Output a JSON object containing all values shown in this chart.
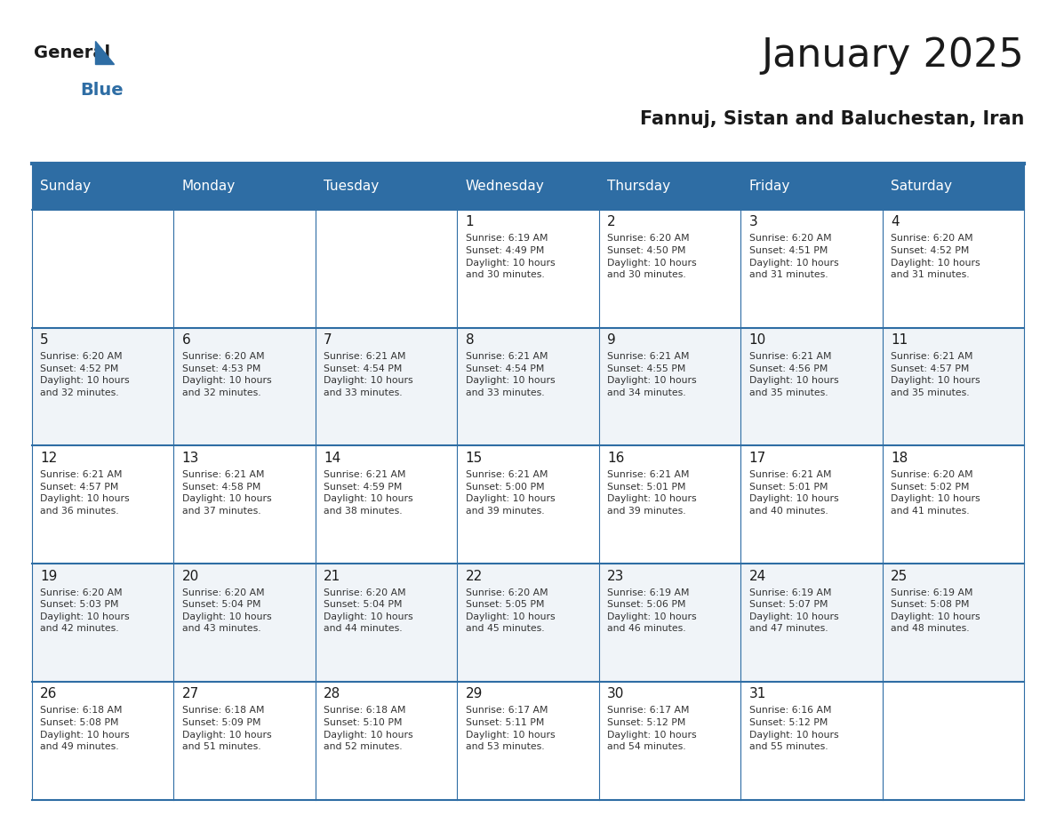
{
  "title": "January 2025",
  "subtitle": "Fannuj, Sistan and Baluchestan, Iran",
  "header_bg": "#2E6DA4",
  "header_text": "#FFFFFF",
  "row_bg_even": "#FFFFFF",
  "row_bg_odd": "#F0F4F8",
  "cell_border": "#2E6DA4",
  "day_headers": [
    "Sunday",
    "Monday",
    "Tuesday",
    "Wednesday",
    "Thursday",
    "Friday",
    "Saturday"
  ],
  "title_color": "#1a1a1a",
  "subtitle_color": "#1a1a1a",
  "day_num_color": "#1a1a1a",
  "cell_text_color": "#333333",
  "weeks": [
    [
      {
        "day": "",
        "info": ""
      },
      {
        "day": "",
        "info": ""
      },
      {
        "day": "",
        "info": ""
      },
      {
        "day": "1",
        "info": "Sunrise: 6:19 AM\nSunset: 4:49 PM\nDaylight: 10 hours\nand 30 minutes."
      },
      {
        "day": "2",
        "info": "Sunrise: 6:20 AM\nSunset: 4:50 PM\nDaylight: 10 hours\nand 30 minutes."
      },
      {
        "day": "3",
        "info": "Sunrise: 6:20 AM\nSunset: 4:51 PM\nDaylight: 10 hours\nand 31 minutes."
      },
      {
        "day": "4",
        "info": "Sunrise: 6:20 AM\nSunset: 4:52 PM\nDaylight: 10 hours\nand 31 minutes."
      }
    ],
    [
      {
        "day": "5",
        "info": "Sunrise: 6:20 AM\nSunset: 4:52 PM\nDaylight: 10 hours\nand 32 minutes."
      },
      {
        "day": "6",
        "info": "Sunrise: 6:20 AM\nSunset: 4:53 PM\nDaylight: 10 hours\nand 32 minutes."
      },
      {
        "day": "7",
        "info": "Sunrise: 6:21 AM\nSunset: 4:54 PM\nDaylight: 10 hours\nand 33 minutes."
      },
      {
        "day": "8",
        "info": "Sunrise: 6:21 AM\nSunset: 4:54 PM\nDaylight: 10 hours\nand 33 minutes."
      },
      {
        "day": "9",
        "info": "Sunrise: 6:21 AM\nSunset: 4:55 PM\nDaylight: 10 hours\nand 34 minutes."
      },
      {
        "day": "10",
        "info": "Sunrise: 6:21 AM\nSunset: 4:56 PM\nDaylight: 10 hours\nand 35 minutes."
      },
      {
        "day": "11",
        "info": "Sunrise: 6:21 AM\nSunset: 4:57 PM\nDaylight: 10 hours\nand 35 minutes."
      }
    ],
    [
      {
        "day": "12",
        "info": "Sunrise: 6:21 AM\nSunset: 4:57 PM\nDaylight: 10 hours\nand 36 minutes."
      },
      {
        "day": "13",
        "info": "Sunrise: 6:21 AM\nSunset: 4:58 PM\nDaylight: 10 hours\nand 37 minutes."
      },
      {
        "day": "14",
        "info": "Sunrise: 6:21 AM\nSunset: 4:59 PM\nDaylight: 10 hours\nand 38 minutes."
      },
      {
        "day": "15",
        "info": "Sunrise: 6:21 AM\nSunset: 5:00 PM\nDaylight: 10 hours\nand 39 minutes."
      },
      {
        "day": "16",
        "info": "Sunrise: 6:21 AM\nSunset: 5:01 PM\nDaylight: 10 hours\nand 39 minutes."
      },
      {
        "day": "17",
        "info": "Sunrise: 6:21 AM\nSunset: 5:01 PM\nDaylight: 10 hours\nand 40 minutes."
      },
      {
        "day": "18",
        "info": "Sunrise: 6:20 AM\nSunset: 5:02 PM\nDaylight: 10 hours\nand 41 minutes."
      }
    ],
    [
      {
        "day": "19",
        "info": "Sunrise: 6:20 AM\nSunset: 5:03 PM\nDaylight: 10 hours\nand 42 minutes."
      },
      {
        "day": "20",
        "info": "Sunrise: 6:20 AM\nSunset: 5:04 PM\nDaylight: 10 hours\nand 43 minutes."
      },
      {
        "day": "21",
        "info": "Sunrise: 6:20 AM\nSunset: 5:04 PM\nDaylight: 10 hours\nand 44 minutes."
      },
      {
        "day": "22",
        "info": "Sunrise: 6:20 AM\nSunset: 5:05 PM\nDaylight: 10 hours\nand 45 minutes."
      },
      {
        "day": "23",
        "info": "Sunrise: 6:19 AM\nSunset: 5:06 PM\nDaylight: 10 hours\nand 46 minutes."
      },
      {
        "day": "24",
        "info": "Sunrise: 6:19 AM\nSunset: 5:07 PM\nDaylight: 10 hours\nand 47 minutes."
      },
      {
        "day": "25",
        "info": "Sunrise: 6:19 AM\nSunset: 5:08 PM\nDaylight: 10 hours\nand 48 minutes."
      }
    ],
    [
      {
        "day": "26",
        "info": "Sunrise: 6:18 AM\nSunset: 5:08 PM\nDaylight: 10 hours\nand 49 minutes."
      },
      {
        "day": "27",
        "info": "Sunrise: 6:18 AM\nSunset: 5:09 PM\nDaylight: 10 hours\nand 51 minutes."
      },
      {
        "day": "28",
        "info": "Sunrise: 6:18 AM\nSunset: 5:10 PM\nDaylight: 10 hours\nand 52 minutes."
      },
      {
        "day": "29",
        "info": "Sunrise: 6:17 AM\nSunset: 5:11 PM\nDaylight: 10 hours\nand 53 minutes."
      },
      {
        "day": "30",
        "info": "Sunrise: 6:17 AM\nSunset: 5:12 PM\nDaylight: 10 hours\nand 54 minutes."
      },
      {
        "day": "31",
        "info": "Sunrise: 6:16 AM\nSunset: 5:12 PM\nDaylight: 10 hours\nand 55 minutes."
      },
      {
        "day": "",
        "info": ""
      }
    ]
  ]
}
